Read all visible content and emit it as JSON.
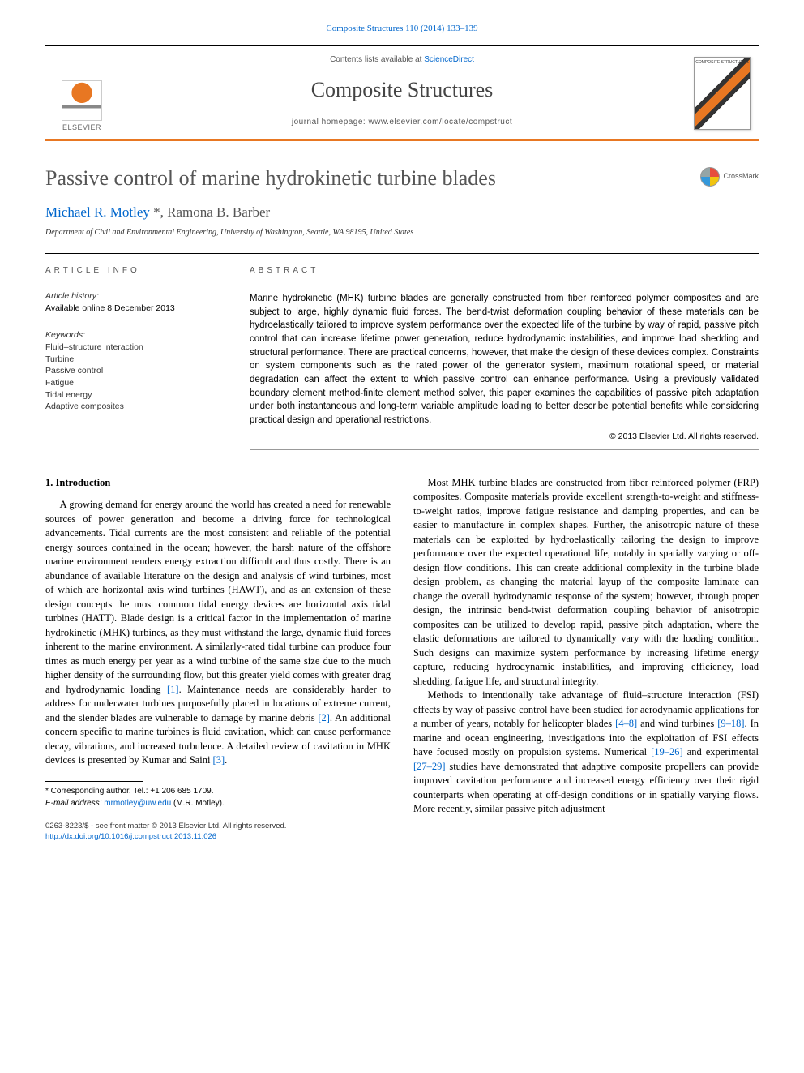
{
  "citation": {
    "journal_link": "Composite Structures 110 (2014) 133–139"
  },
  "masthead": {
    "contents_prefix": "Contents lists available at ",
    "contents_link": "ScienceDirect",
    "journal": "Composite Structures",
    "homepage_prefix": "journal homepage: ",
    "homepage": "www.elsevier.com/locate/compstruct",
    "publisher": "ELSEVIER",
    "cover_label": "COMPOSITE STRUCTURES"
  },
  "article": {
    "title": "Passive control of marine hydrokinetic turbine blades",
    "crossmark": "CrossMark",
    "authors_html": "Michael R. Motley",
    "author_marker": " *",
    "author2": ", Ramona B. Barber",
    "affiliation": "Department of Civil and Environmental Engineering, University of Washington, Seattle, WA 98195, United States"
  },
  "info": {
    "header": "article info",
    "history_label": "Article history:",
    "history_value": "Available online 8 December 2013",
    "keywords_label": "Keywords:",
    "keywords": "Fluid–structure interaction\nTurbine\nPassive control\nFatigue\nTidal energy\nAdaptive composites"
  },
  "abstract": {
    "header": "abstract",
    "text": "Marine hydrokinetic (MHK) turbine blades are generally constructed from fiber reinforced polymer composites and are subject to large, highly dynamic fluid forces. The bend-twist deformation coupling behavior of these materials can be hydroelastically tailored to improve system performance over the expected life of the turbine by way of rapid, passive pitch control that can increase lifetime power generation, reduce hydrodynamic instabilities, and improve load shedding and structural performance. There are practical concerns, however, that make the design of these devices complex. Constraints on system components such as the rated power of the generator system, maximum rotational speed, or material degradation can affect the extent to which passive control can enhance performance. Using a previously validated boundary element method-finite element method solver, this paper examines the capabilities of passive pitch adaptation under both instantaneous and long-term variable amplitude loading to better describe potential benefits while considering practical design and operational restrictions.",
    "copyright": "© 2013 Elsevier Ltd. All rights reserved."
  },
  "body": {
    "section1_title": "1. Introduction",
    "col1_p1a": "A growing demand for energy around the world has created a need for renewable sources of power generation and become a driving force for technological advancements. Tidal currents are the most consistent and reliable of the potential energy sources contained in the ocean; however, the harsh nature of the offshore marine environment renders energy extraction difficult and thus costly. There is an abundance of available literature on the design and analysis of wind turbines, most of which are horizontal axis wind turbines (HAWT), and as an extension of these design concepts the most common tidal energy devices are horizontal axis tidal turbines (HATT). Blade design is a critical factor in the implementation of marine hydrokinetic (MHK) turbines, as they must withstand the large, dynamic fluid forces inherent to the marine environment. A similarly-rated tidal turbine can produce four times as much energy per year as a wind turbine of the same size due to the much higher density of the surrounding flow, but this greater yield comes with greater drag and hydrodynamic loading ",
    "ref1": "[1]",
    "col1_p1b": ". Maintenance needs are considerably harder to address for underwater turbines purposefully placed in locations of extreme current, and the slender blades are vulnerable to damage by marine debris ",
    "ref2": "[2]",
    "col1_p1c": ". An additional concern specific to marine turbines is fluid cavitation, which can cause performance decay, vibrations, and increased turbulence. A detailed review of cavitation in MHK devices is presented by Kumar and Saini ",
    "ref3": "[3]",
    "col1_p1d": ".",
    "col2_p1": "Most MHK turbine blades are constructed from fiber reinforced polymer (FRP) composites. Composite materials provide excellent strength-to-weight and stiffness-to-weight ratios, improve fatigue resistance and damping properties, and can be easier to manufacture in complex shapes. Further, the anisotropic nature of these materials can be exploited by hydroelastically tailoring the design to improve performance over the expected operational life, notably in spatially varying or off-design flow conditions. This can create additional complexity in the turbine blade design problem, as changing the material layup of the composite laminate can change the overall hydrodynamic response of the system; however, through proper design, the intrinsic bend-twist deformation coupling behavior of anisotropic composites can be utilized to develop rapid, passive pitch adaptation, where the elastic deformations are tailored to dynamically vary with the loading condition. Such designs can maximize system performance by increasing lifetime energy capture, reducing hydrodynamic instabilities, and improving efficiency, load shedding, fatigue life, and structural integrity.",
    "col2_p2a": "Methods to intentionally take advantage of fluid–structure interaction (FSI) effects by way of passive control have been studied for aerodynamic applications for a number of years, notably for helicopter blades ",
    "ref48": "[4–8]",
    "col2_p2b": " and wind turbines ",
    "ref918": "[9–18]",
    "col2_p2c": ". In marine and ocean engineering, investigations into the exploitation of FSI effects have focused mostly on propulsion systems. Numerical ",
    "ref1926": "[19–26]",
    "col2_p2d": " and experimental ",
    "ref2729": "[27–29]",
    "col2_p2e": " studies have demonstrated that adaptive composite propellers can provide improved cavitation performance and increased energy efficiency over their rigid counterparts when operating at off-design conditions or in spatially varying flows. More recently, similar passive pitch adjustment"
  },
  "footer": {
    "corr_label": "* Corresponding author. Tel.: +1 206 685 1709.",
    "email_label": "E-mail address: ",
    "email": "mrmotley@uw.edu",
    "email_suffix": " (M.R. Motley).",
    "issn": "0263-8223/$ - see front matter © 2013 Elsevier Ltd. All rights reserved.",
    "doi_prefix": "http://dx.doi.org/",
    "doi": "10.1016/j.compstruct.2013.11.026"
  },
  "colors": {
    "accent": "#e87722",
    "link": "#0066cc",
    "text_muted": "#555555"
  }
}
